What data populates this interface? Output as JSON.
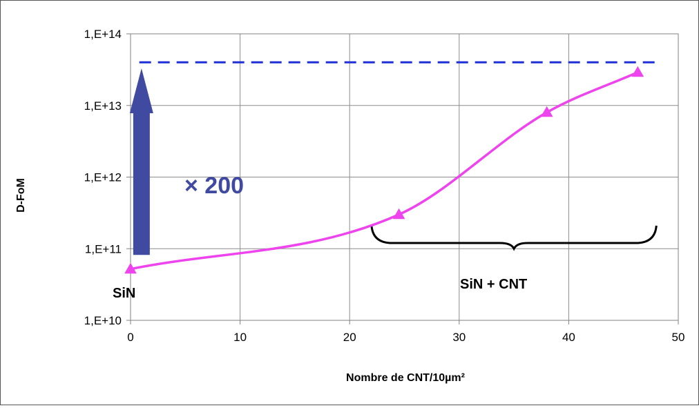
{
  "chart_data": {
    "type": "line",
    "title": "",
    "xlabel": "Nombre de CNT/10µm²",
    "ylabel": "D-FoM",
    "xlim": [
      0,
      50
    ],
    "ylim": [
      10000000000.0,
      100000000000000.0
    ],
    "y_scale": "log",
    "grid": true,
    "legend": "none",
    "x_ticks": [
      "0",
      "10",
      "20",
      "30",
      "40",
      "50"
    ],
    "y_ticks": [
      "1,E+10",
      "1,E+11",
      "1,E+12",
      "1,E+13",
      "1,E+14"
    ],
    "series": [
      {
        "marker": "triangle",
        "color": "#ee44ee",
        "x": [
          0,
          24.5,
          38,
          46.3
        ],
        "y": [
          52000000000.0,
          300000000000.0,
          8000000000000.0,
          29000000000000.0
        ]
      }
    ],
    "reference_line": {
      "y": 40000000000000.0,
      "style": "dashed",
      "color": "#1f2fd6"
    },
    "annotations": {
      "factor_label": "× 200",
      "sin_label": "SiN",
      "sin_cnt_label": "SiN + CNT"
    },
    "colors": {
      "arrow": "#404aa0",
      "factor_text": "#404aa0",
      "brace": "#000000",
      "grid": "#8c8c8c"
    }
  }
}
